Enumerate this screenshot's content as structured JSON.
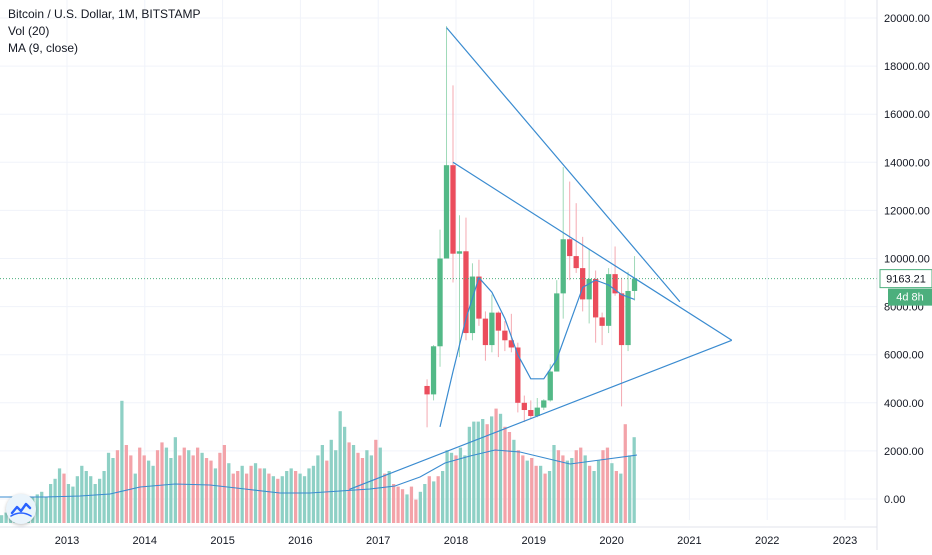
{
  "legend": {
    "title": "Bitcoin / U.S. Dollar, 1M, BITSTAMP",
    "vol": "Vol (20)",
    "ma": "MA (9, close)"
  },
  "price_label": "9163.21",
  "countdown_label": "4d 8h",
  "colors": {
    "up": "#53b987",
    "down": "#eb4d5c",
    "vol_up": "#8ed0c5",
    "vol_down": "#f3a3a9",
    "line": "#3a8bd0",
    "price_box": "#4caf7d"
  },
  "icons": {
    "logo": "tradingview-logo-icon"
  },
  "chart_data": {
    "type": "candlestick",
    "title": "Bitcoin / U.S. Dollar, 1M, BITSTAMP",
    "y_axis": {
      "ticks": [
        "0.00",
        "2000.00",
        "4000.00",
        "6000.00",
        "8000.00",
        "10000.00",
        "12000.00",
        "14000.00",
        "16000.00",
        "18000.00",
        "20000.00"
      ],
      "position": "right"
    },
    "x_axis": {
      "ticks": [
        "2013",
        "2014",
        "2015",
        "2016",
        "2017",
        "2018",
        "2019",
        "2020",
        "2021",
        "2022",
        "2023"
      ]
    },
    "current_price": 9163.21,
    "candles": [
      {
        "t": "2017-09",
        "o": 4700,
        "h": 4975,
        "l": 2980,
        "c": 4350
      },
      {
        "t": "2017-10",
        "o": 4350,
        "h": 6400,
        "l": 4100,
        "c": 6350
      },
      {
        "t": "2017-11",
        "o": 6350,
        "h": 11200,
        "l": 5500,
        "c": 10000
      },
      {
        "t": "2017-12",
        "o": 10000,
        "h": 19660,
        "l": 10000,
        "c": 13880
      },
      {
        "t": "2018-01",
        "o": 13880,
        "h": 17200,
        "l": 9000,
        "c": 10200
      },
      {
        "t": "2018-02",
        "o": 10200,
        "h": 11800,
        "l": 5900,
        "c": 10300
      },
      {
        "t": "2018-03",
        "o": 10300,
        "h": 11700,
        "l": 6600,
        "c": 6900
      },
      {
        "t": "2018-04",
        "o": 6900,
        "h": 9800,
        "l": 6600,
        "c": 9250
      },
      {
        "t": "2018-05",
        "o": 9250,
        "h": 9950,
        "l": 7200,
        "c": 7500
      },
      {
        "t": "2018-06",
        "o": 7500,
        "h": 7800,
        "l": 5750,
        "c": 6400
      },
      {
        "t": "2018-07",
        "o": 6400,
        "h": 8500,
        "l": 6100,
        "c": 7750
      },
      {
        "t": "2018-08",
        "o": 7750,
        "h": 7800,
        "l": 5900,
        "c": 7000
      },
      {
        "t": "2018-09",
        "o": 7000,
        "h": 7400,
        "l": 6150,
        "c": 6600
      },
      {
        "t": "2018-10",
        "o": 6600,
        "h": 7700,
        "l": 6100,
        "c": 6300
      },
      {
        "t": "2018-11",
        "o": 6300,
        "h": 6500,
        "l": 3600,
        "c": 4000
      },
      {
        "t": "2018-12",
        "o": 4000,
        "h": 4300,
        "l": 3200,
        "c": 3700
      },
      {
        "t": "2019-01",
        "o": 3700,
        "h": 4100,
        "l": 3350,
        "c": 3450
      },
      {
        "t": "2019-02",
        "o": 3450,
        "h": 4200,
        "l": 3400,
        "c": 3800
      },
      {
        "t": "2019-03",
        "o": 3800,
        "h": 4150,
        "l": 3700,
        "c": 4100
      },
      {
        "t": "2019-04",
        "o": 4100,
        "h": 5600,
        "l": 4050,
        "c": 5300
      },
      {
        "t": "2019-05",
        "o": 5300,
        "h": 9100,
        "l": 5300,
        "c": 8550
      },
      {
        "t": "2019-06",
        "o": 8550,
        "h": 13800,
        "l": 7500,
        "c": 10800
      },
      {
        "t": "2019-07",
        "o": 10800,
        "h": 13200,
        "l": 9100,
        "c": 10100
      },
      {
        "t": "2019-08",
        "o": 10100,
        "h": 12300,
        "l": 9400,
        "c": 9600
      },
      {
        "t": "2019-09",
        "o": 9600,
        "h": 10900,
        "l": 7800,
        "c": 8300
      },
      {
        "t": "2019-10",
        "o": 8300,
        "h": 10400,
        "l": 7300,
        "c": 9150
      },
      {
        "t": "2019-11",
        "o": 9150,
        "h": 9500,
        "l": 6500,
        "c": 7550
      },
      {
        "t": "2019-12",
        "o": 7550,
        "h": 7750,
        "l": 6400,
        "c": 7200
      },
      {
        "t": "2020-01",
        "o": 7200,
        "h": 9600,
        "l": 6900,
        "c": 9350
      },
      {
        "t": "2020-02",
        "o": 9350,
        "h": 10500,
        "l": 8450,
        "c": 8550
      },
      {
        "t": "2020-03",
        "o": 8550,
        "h": 9200,
        "l": 3850,
        "c": 6400
      },
      {
        "t": "2020-04",
        "o": 6400,
        "h": 9450,
        "l": 6150,
        "c": 8650
      },
      {
        "t": "2020-05",
        "o": 8650,
        "h": 10100,
        "l": 8250,
        "c": 9163
      }
    ],
    "ma_line": [
      {
        "t": "2017-11",
        "v": 3000
      },
      {
        "t": "2018-01",
        "v": 5300
      },
      {
        "t": "2018-03",
        "v": 7500
      },
      {
        "t": "2018-05",
        "v": 9200
      },
      {
        "t": "2018-07",
        "v": 8600
      },
      {
        "t": "2018-09",
        "v": 7500
      },
      {
        "t": "2018-11",
        "v": 6000
      },
      {
        "t": "2019-01",
        "v": 5000
      },
      {
        "t": "2019-03",
        "v": 5000
      },
      {
        "t": "2019-05",
        "v": 5800
      },
      {
        "t": "2019-07",
        "v": 7300
      },
      {
        "t": "2019-09",
        "v": 8800
      },
      {
        "t": "2019-11",
        "v": 9100
      },
      {
        "t": "2020-01",
        "v": 8900
      },
      {
        "t": "2020-03",
        "v": 8500
      },
      {
        "t": "2020-05",
        "v": 8300
      }
    ],
    "trendlines": [
      {
        "from": {
          "t": "2017-12",
          "v": 19600
        },
        "to": {
          "t": "2020-12",
          "v": 8200
        }
      },
      {
        "from": {
          "t": "2018-01",
          "v": 14000
        },
        "to": {
          "t": "2021-08",
          "v": 6600
        }
      },
      {
        "from": {
          "t": "2016-09",
          "v": 400
        },
        "to": {
          "t": "2021-08",
          "v": 6600
        }
      }
    ],
    "volume_note": "volume bars shown in lower pane, heights in relative units 0-1",
    "volume": [
      0.06,
      0.08,
      0.1,
      0.12,
      0.14,
      0.16,
      0.18,
      0.2,
      0.22,
      0.24,
      0.2,
      0.3,
      0.34,
      0.42,
      0.38,
      0.3,
      0.28,
      0.36,
      0.44,
      0.4,
      0.36,
      0.3,
      0.34,
      0.4,
      0.54,
      0.5,
      0.56,
      0.94,
      0.6,
      0.52,
      0.38,
      0.58,
      0.52,
      0.48,
      0.44,
      0.56,
      0.62,
      0.58,
      0.5,
      0.66,
      0.52,
      0.58,
      0.56,
      0.52,
      0.58,
      0.54,
      0.5,
      0.48,
      0.42,
      0.54,
      0.6,
      0.46,
      0.38,
      0.4,
      0.44,
      0.38,
      0.44,
      0.46,
      0.42,
      0.42,
      0.38,
      0.36,
      0.34,
      0.36,
      0.4,
      0.42,
      0.4,
      0.38,
      0.36,
      0.42,
      0.44,
      0.52,
      0.6,
      0.48,
      0.64,
      0.56,
      0.86,
      0.74,
      0.62,
      0.6,
      0.54,
      0.5,
      0.56,
      0.52,
      0.64,
      0.58,
      0.38,
      0.4,
      0.3,
      0.28,
      0.26,
      0.22,
      0.28,
      0.18,
      0.24,
      0.3,
      0.36,
      0.32,
      0.36,
      0.4,
      0.56,
      0.54,
      0.52,
      0.58,
      0.52,
      0.74,
      0.78,
      0.78,
      0.8,
      0.76,
      0.82,
      0.88,
      0.84,
      0.74,
      0.7,
      0.64,
      0.56,
      0.52,
      0.48,
      0.5,
      0.44,
      0.44,
      0.38,
      0.4,
      0.6,
      0.56,
      0.52,
      0.48,
      0.5,
      0.56,
      0.58,
      0.52,
      0.44,
      0.4,
      0.48,
      0.56,
      0.58,
      0.46,
      0.4,
      0.38,
      0.76,
      0.52,
      0.66
    ],
    "volume_up": [
      1,
      1,
      1,
      1,
      1,
      1,
      1,
      1,
      1,
      1,
      1,
      1,
      1,
      1,
      0,
      1,
      1,
      1,
      1,
      1,
      1,
      1,
      1,
      1,
      1,
      1,
      0,
      1,
      0,
      0,
      1,
      0,
      0,
      1,
      1,
      0,
      0,
      1,
      1,
      1,
      0,
      0,
      1,
      0,
      0,
      1,
      0,
      0,
      1,
      0,
      0,
      1,
      0,
      0,
      1,
      0,
      0,
      1,
      0,
      1,
      0,
      1,
      0,
      1,
      1,
      1,
      0,
      1,
      1,
      1,
      1,
      1,
      1,
      0,
      1,
      1,
      1,
      1,
      0,
      1,
      0,
      0,
      1,
      1,
      0,
      1,
      0,
      1,
      0,
      0,
      0,
      1,
      0,
      0,
      1,
      1,
      0,
      1,
      0,
      1,
      1,
      1,
      0,
      1,
      1,
      1,
      1,
      1,
      1,
      0,
      1,
      0,
      1,
      0,
      0,
      1,
      0,
      0,
      1,
      0,
      0,
      1,
      0,
      1,
      1,
      0,
      0,
      1,
      1,
      0,
      0,
      1,
      0,
      1,
      1,
      0,
      0,
      1,
      0,
      1,
      0,
      1,
      1
    ]
  }
}
